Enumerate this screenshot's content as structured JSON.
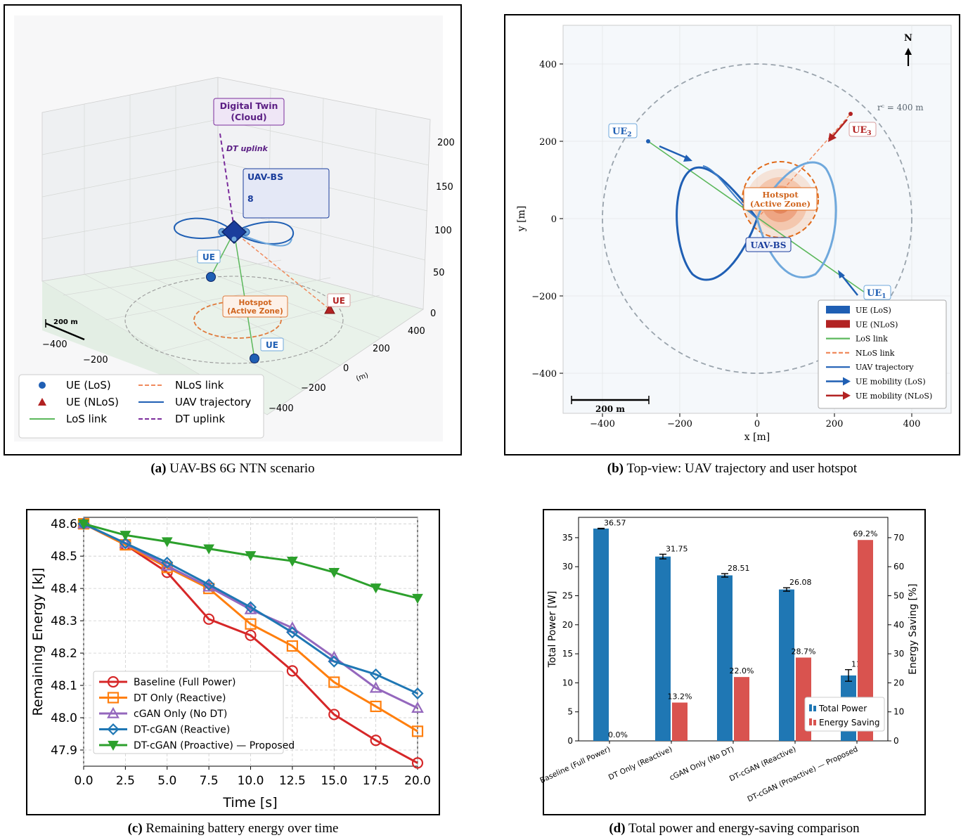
{
  "captions": {
    "a": {
      "tag": "(a)",
      "text": "UAV-BS 6G NTN scenario"
    },
    "b": {
      "tag": "(b)",
      "text": "Top-view: UAV trajectory and user hotspot"
    },
    "c": {
      "tag": "(c)",
      "text": "Remaining battery energy over time"
    },
    "d": {
      "tag": "(d)",
      "text": "Total power and energy-saving comparison"
    }
  },
  "panel_a": {
    "labels": {
      "digital_twin": [
        "Digital Twin",
        "(Cloud)"
      ],
      "dt_uplink": "DT uplink",
      "uav_bs": "UAV-BS",
      "uav_value": "8",
      "ue_left": "UE",
      "ue_nlos": "UE",
      "ue_front": "UE",
      "hotspot": [
        "Hotspot",
        "(Active Zone)"
      ],
      "scale_bar": "200 m",
      "axis_unit": "(m)"
    },
    "z_ticks": [
      "200",
      "150",
      "100",
      "50",
      "0"
    ],
    "y_ticks": [
      "400",
      "200",
      "0",
      "−200",
      "−400"
    ],
    "x_ticks": [
      "−400",
      "−200"
    ],
    "legend": [
      {
        "label": "UE (LoS)",
        "kind": "circle",
        "color": "#1f5fb4"
      },
      {
        "label": "NLoS link",
        "kind": "dashed",
        "color": "#f08a5d"
      },
      {
        "label": "UE (NLoS)",
        "kind": "triangle",
        "color": "#b22222"
      },
      {
        "label": "UAV trajectory",
        "kind": "line",
        "color": "#1f5fb4"
      },
      {
        "label": "LoS link",
        "kind": "line",
        "color": "#5cb85c"
      },
      {
        "label": "DT uplink",
        "kind": "dashed",
        "color": "#7b2d9c"
      }
    ]
  },
  "panel_b": {
    "xlabel": "x [m]",
    "ylabel": "y [m]",
    "x_ticks": [
      -400,
      -200,
      0,
      200,
      400
    ],
    "y_ticks": [
      400,
      200,
      0,
      -200,
      -400
    ],
    "labels": {
      "north": "N",
      "radius": "rᶜ = 400 m",
      "ue1": "UE",
      "ue1_sub": "1",
      "ue2": "UE",
      "ue2_sub": "2",
      "ue3": "UE",
      "ue3_sub": "3",
      "hotspot": [
        "Hotspot",
        "(Active Zone)"
      ],
      "uav_bs": "UAV-BS",
      "scale_bar": "200 m"
    },
    "legend": [
      {
        "label": "UE (LoS)",
        "kind": "box",
        "color": "#1f5fb4"
      },
      {
        "label": "UE (NLoS)",
        "kind": "box",
        "color": "#b22222"
      },
      {
        "label": "LoS link",
        "kind": "line",
        "color": "#5cb85c"
      },
      {
        "label": "NLoS link",
        "kind": "dashed",
        "color": "#f08a5d"
      },
      {
        "label": "UAV trajectory",
        "kind": "line",
        "color": "#1f5fb4"
      },
      {
        "label": "UE mobility (LoS)",
        "kind": "arrow",
        "color": "#1f5fb4"
      },
      {
        "label": "UE mobility (NLoS)",
        "kind": "arrow",
        "color": "#b22222"
      }
    ]
  },
  "chart_data": [
    {
      "type": "line",
      "xlabel": "Time [s]",
      "ylabel": "Remaining Energy [kJ]",
      "x": [
        0.0,
        2.5,
        5.0,
        7.5,
        10.0,
        12.5,
        15.0,
        17.5,
        20.0
      ],
      "x_ticks": [
        "0.0",
        "2.5",
        "5.0",
        "7.5",
        "10.0",
        "12.5",
        "15.0",
        "17.5",
        "20.0"
      ],
      "y_ticks": [
        "48.6",
        "48.5",
        "48.4",
        "48.3",
        "48.2",
        "48.1",
        "48.0",
        "47.9"
      ],
      "xlim": [
        0,
        20
      ],
      "ylim": [
        47.85,
        48.62
      ],
      "grid": true,
      "legend_position": "lower-left",
      "series": [
        {
          "name": "Baseline (Full Power)",
          "color": "#d62728",
          "marker": "circle",
          "values": [
            48.6,
            48.535,
            48.45,
            48.305,
            48.255,
            48.145,
            48.01,
            47.93,
            47.86
          ]
        },
        {
          "name": "DT Only (Reactive)",
          "color": "#ff7f0e",
          "marker": "square",
          "values": [
            48.6,
            48.535,
            48.465,
            48.4,
            48.29,
            48.222,
            48.11,
            48.035,
            47.958
          ]
        },
        {
          "name": "cGAN Only (No DT)",
          "color": "#9467bd",
          "marker": "triangle-up",
          "values": [
            48.6,
            48.54,
            48.47,
            48.405,
            48.335,
            48.278,
            48.187,
            48.092,
            48.03
          ]
        },
        {
          "name": "DT-cGAN (Reactive)",
          "color": "#1f77b4",
          "marker": "diamond",
          "values": [
            48.6,
            48.54,
            48.48,
            48.412,
            48.342,
            48.264,
            48.174,
            48.134,
            48.075
          ]
        },
        {
          "name": "DT-cGAN (Proactive) — Proposed",
          "color": "#2ca02c",
          "marker": "triangle-down",
          "values": [
            48.6,
            48.565,
            48.545,
            48.523,
            48.502,
            48.485,
            48.45,
            48.402,
            48.37
          ]
        }
      ]
    },
    {
      "type": "bar",
      "ylabel": "Total Power [W]",
      "y2label": "Energy Saving [%]",
      "categories": [
        "Baseline (Full Power)",
        "DT Only (Reactive)",
        "cGAN Only (No DT)",
        "DT-cGAN (Reactive)",
        "DT-cGAN (Proactive) — Proposed"
      ],
      "ylim": [
        0,
        38.5
      ],
      "y2lim": [
        0,
        77
      ],
      "y_ticks": [
        0,
        5,
        10,
        15,
        20,
        25,
        30,
        35
      ],
      "y2_ticks": [
        0,
        10,
        20,
        30,
        40,
        50,
        60,
        70
      ],
      "legend_position": "lower-right",
      "series": [
        {
          "name": "Total Power",
          "color": "#1f77b4",
          "axis": "left",
          "values": [
            36.57,
            31.75,
            28.51,
            26.08,
            11.27
          ],
          "labels": [
            "36.57",
            "31.75",
            "28.51",
            "26.08",
            "11.27"
          ],
          "errors": [
            0.05,
            0.4,
            0.3,
            0.3,
            1.0
          ]
        },
        {
          "name": "Energy Saving",
          "color": "#d9534f",
          "axis": "right",
          "values": [
            0.0,
            13.2,
            22.0,
            28.7,
            69.2
          ],
          "labels": [
            "0.0%",
            "13.2%",
            "22.0%",
            "28.7%",
            "69.2%"
          ]
        }
      ]
    }
  ]
}
